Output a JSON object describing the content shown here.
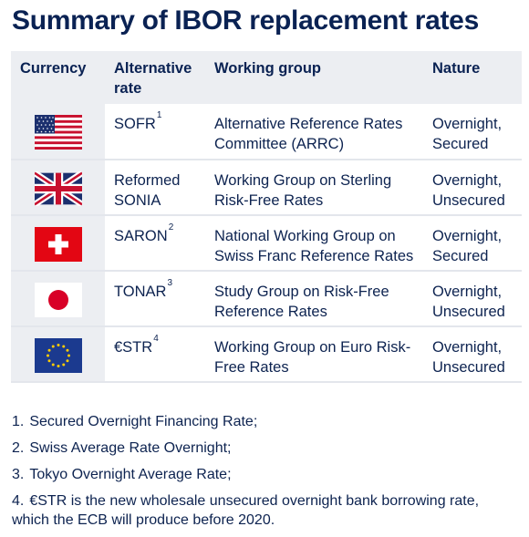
{
  "title": "Summary of IBOR replacement rates",
  "headers": {
    "currency": "Currency",
    "alternative_rate": "Alternative rate",
    "working_group": "Working group",
    "nature": "Nature"
  },
  "rows": [
    {
      "flag_icon": "us-flag-icon",
      "rate": "SOFR",
      "sup": "1",
      "group": "Alternative Reference Rates Committee (ARRC)",
      "nature": "Overnight, Secured"
    },
    {
      "flag_icon": "uk-flag-icon",
      "rate": "Reformed SONIA",
      "sup": "",
      "group": "Working Group on Sterling Risk-Free Rates",
      "nature": "Overnight, Unsecured"
    },
    {
      "flag_icon": "swiss-flag-icon",
      "rate": "SARON",
      "sup": "2",
      "group": "National Working Group on Swiss Franc Reference Rates",
      "nature": "Overnight, Secured"
    },
    {
      "flag_icon": "japan-flag-icon",
      "rate": "TONAR",
      "sup": "3",
      "group": "Study Group on Risk-Free Reference Rates",
      "nature": "Overnight, Unsecured"
    },
    {
      "flag_icon": "eu-flag-icon",
      "rate": "€STR",
      "sup": "4",
      "group": "Working Group on Euro Risk-Free Rates",
      "nature": "Overnight, Unsecured"
    }
  ],
  "notes": [
    {
      "num": "1.",
      "text": "Secured Overnight Financing Rate;"
    },
    {
      "num": "2.",
      "text": "Swiss Average Rate Overnight;"
    },
    {
      "num": "3.",
      "text": "Tokyo Overnight Average Rate;"
    },
    {
      "num": "4.",
      "text": "€STR is the new wholesale unsecured overnight bank borrowing rate, which the ECB will produce before 2020."
    }
  ],
  "colors": {
    "title": "#0a2253",
    "text": "#0d2350",
    "header_bg": "#eceef2",
    "divider": "#e3e6ec"
  }
}
